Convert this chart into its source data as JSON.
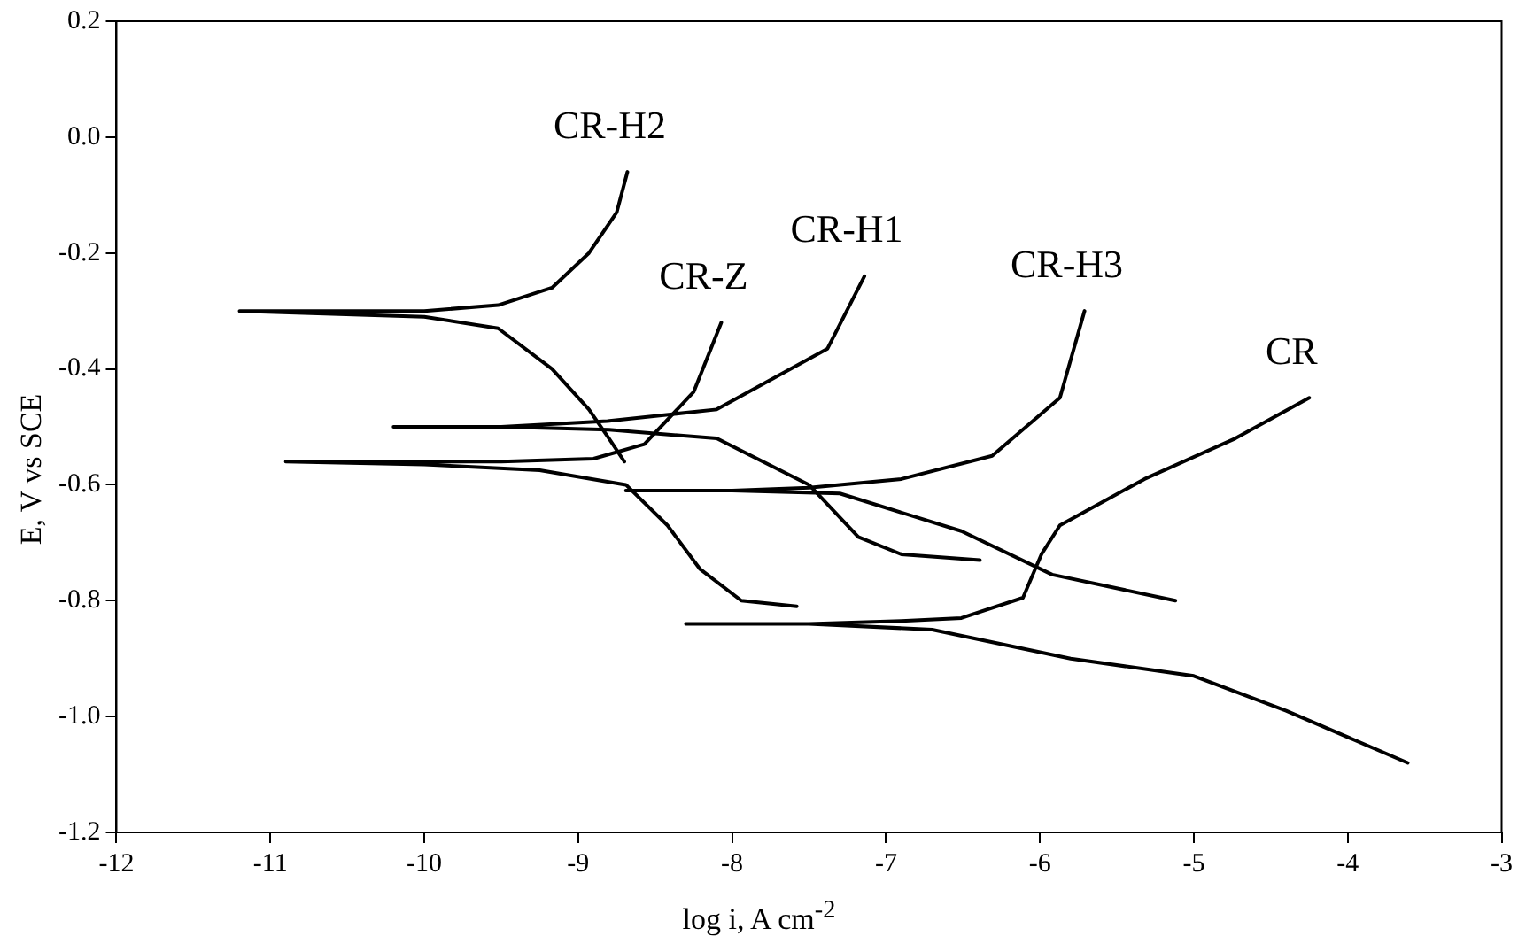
{
  "chart_data": {
    "type": "line",
    "xlabel": "log i, A cm$^{-2}$",
    "ylabel": "E, V vs SCE",
    "xlim": [
      -12,
      -3
    ],
    "xticks": [
      -12,
      -11,
      -10,
      -9,
      -8,
      -7,
      -6,
      -5,
      -4,
      -3
    ],
    "ylim": [
      -1.2,
      0.2
    ],
    "yticks": [
      {
        "value": -1.2,
        "label": "-1.2"
      },
      {
        "value": -1.0,
        "label": "-1.0"
      },
      {
        "value": -0.8,
        "label": "-0.8"
      },
      {
        "value": -0.6,
        "label": "-0.6"
      },
      {
        "value": -0.4,
        "label": "-0.4"
      },
      {
        "value": -0.2,
        "label": "-0.2"
      },
      {
        "value": 0,
        "label": "0.0"
      },
      {
        "value": 0.2,
        "label": "0.2"
      }
    ],
    "grid": false,
    "legend": false,
    "marker": "none",
    "line_style": "solid",
    "series": [
      {
        "name": "CR-H2",
        "color": "#000000",
        "x": [
          -8.7,
          -8.8,
          -8.93,
          -9.17,
          -9.52,
          -10,
          -11.2,
          -10,
          -9.52,
          -9.17,
          -8.93,
          -8.75,
          -8.68
        ],
        "values": [
          -0.56,
          -0.52,
          -0.47,
          -0.4,
          -0.33,
          -0.31,
          -0.3,
          -0.3,
          -0.29,
          -0.26,
          -0.2,
          -0.13,
          -0.06
        ]
      },
      {
        "name": "CR-Z",
        "color": "#000000",
        "x": [
          -7.58,
          -7.94,
          -8.21,
          -8.42,
          -8.69,
          -9.25,
          -10,
          -10.9,
          -9.5,
          -8.9,
          -8.57,
          -8.25,
          -8.07
        ],
        "values": [
          -0.81,
          -0.8,
          -0.745,
          -0.67,
          -0.6,
          -0.575,
          -0.565,
          -0.56,
          -0.56,
          -0.555,
          -0.53,
          -0.44,
          -0.32
        ]
      },
      {
        "name": "CR-H1",
        "color": "#000000",
        "x": [
          -6.39,
          -6.9,
          -7.18,
          -7.5,
          -8.1,
          -8.8,
          -9.5,
          -10.2,
          -9.5,
          -8.81,
          -8.1,
          -7.38,
          -7.14
        ],
        "values": [
          -0.73,
          -0.72,
          -0.69,
          -0.6,
          -0.52,
          -0.505,
          -0.5,
          -0.5,
          -0.5,
          -0.49,
          -0.47,
          -0.365,
          -0.24
        ]
      },
      {
        "name": "CR-H3",
        "color": "#000000",
        "x": [
          -5.12,
          -5.92,
          -6.51,
          -7.3,
          -8,
          -8.69,
          -8,
          -7.5,
          -6.9,
          -6.31,
          -5.87,
          -5.71
        ],
        "values": [
          -0.8,
          -0.755,
          -0.68,
          -0.615,
          -0.61,
          -0.61,
          -0.61,
          -0.605,
          -0.59,
          -0.55,
          -0.45,
          -0.3
        ]
      },
      {
        "name": "CR",
        "color": "#000000",
        "x": [
          -3.61,
          -4.4,
          -5.0,
          -5.8,
          -6.7,
          -7.5,
          -8.3,
          -7.5,
          -6.9,
          -6.51,
          -6.11,
          -5.99,
          -5.87,
          -5.32,
          -4.73,
          -4.25
        ],
        "values": [
          -1.08,
          -0.99,
          -0.93,
          -0.9,
          -0.85,
          -0.84,
          -0.84,
          -0.84,
          -0.835,
          -0.83,
          -0.795,
          -0.72,
          -0.67,
          -0.59,
          -0.52,
          -0.45
        ]
      }
    ]
  }
}
